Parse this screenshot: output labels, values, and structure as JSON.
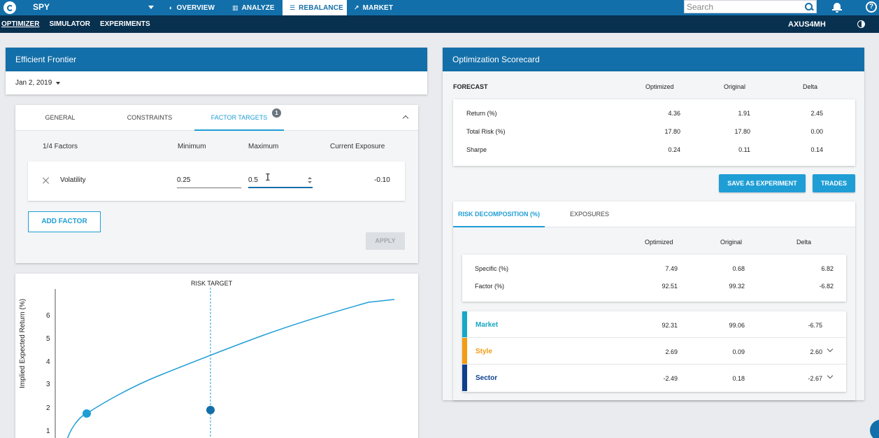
{
  "topbar": {
    "ticker": "SPY",
    "nav": [
      {
        "icon": "speedometer-icon",
        "glyph": "◐",
        "label": "OVERVIEW"
      },
      {
        "icon": "bar-chart-icon",
        "glyph": "▥",
        "label": "ANALYZE"
      },
      {
        "icon": "sliders-icon",
        "glyph": "☰",
        "label": "REBALANCE"
      },
      {
        "icon": "line-chart-icon",
        "glyph": "↗",
        "label": "MARKET"
      }
    ],
    "active_nav": "REBALANCE",
    "search_placeholder": "Search"
  },
  "subbar": {
    "items": [
      "OPTIMIZER",
      "SIMULATOR",
      "EXPERIMENTS"
    ],
    "active": "OPTIMIZER",
    "account": "AXUS4MH"
  },
  "left": {
    "title": "Efficient Frontier",
    "date": "Jan 2, 2019",
    "tabs": [
      "GENERAL",
      "CONSTRAINTS",
      "FACTOR TARGETS"
    ],
    "active_tab": "FACTOR TARGETS",
    "tab_badge": "1",
    "factor_headers": {
      "count": "1/4 Factors",
      "min": "Minimum",
      "max": "Maximum",
      "exposure": "Current Exposure"
    },
    "factor": {
      "name": "Volatility",
      "min": "0.25",
      "max": "0.5",
      "exposure": "-0.10"
    },
    "add_factor": "ADD FACTOR",
    "apply": "APPLY"
  },
  "chart_data": {
    "type": "line",
    "annotation": "RISK TARGET",
    "ylabel": "Implied Expected Return (%)",
    "yticks": [
      "1",
      "2",
      "3",
      "4",
      "5",
      "6"
    ],
    "colors": {
      "line": "#1f9ed6",
      "marker": "#136fa9",
      "point": "#1f9ed6"
    }
  },
  "right": {
    "title": "Optimization Scorecard",
    "forecast": {
      "label": "FORECAST",
      "columns": [
        "Optimized",
        "Original",
        "Delta"
      ],
      "rows": [
        {
          "label": "Return (%)",
          "values": [
            "4.36",
            "1.91",
            "2.45"
          ]
        },
        {
          "label": "Total Risk (%)",
          "values": [
            "17.80",
            "17.80",
            "0.00"
          ]
        },
        {
          "label": "Sharpe",
          "values": [
            "0.24",
            "0.11",
            "0.14"
          ]
        }
      ]
    },
    "buttons": {
      "save": "SAVE AS EXPERIMENT",
      "trades": "TRADES"
    },
    "tabs": [
      "RISK DECOMPOSITION (%)",
      "EXPOSURES"
    ],
    "active_tab": "RISK DECOMPOSITION (%)",
    "risk": {
      "columns": [
        "Optimized",
        "Original",
        "Delta"
      ],
      "rows": [
        {
          "label": "Specific (%)",
          "values": [
            "7.49",
            "0.68",
            "6.82"
          ]
        },
        {
          "label": "Factor (%)",
          "values": [
            "92.51",
            "99.32",
            "-6.82"
          ]
        }
      ],
      "categories": [
        {
          "label": "Market",
          "color": "#17a8c4",
          "values": [
            "92.31",
            "99.06",
            "-6.75"
          ],
          "expandable": false
        },
        {
          "label": "Style",
          "color": "#f39c12",
          "values": [
            "2.69",
            "0.09",
            "2.60"
          ],
          "expandable": true
        },
        {
          "label": "Sector",
          "color": "#0d3f8c",
          "values": [
            "-2.49",
            "0.18",
            "-2.67"
          ],
          "expandable": true
        }
      ]
    }
  },
  "colors": {
    "primary": "#136fa9",
    "dark": "#08304f",
    "accent": "#1f9ed6"
  }
}
